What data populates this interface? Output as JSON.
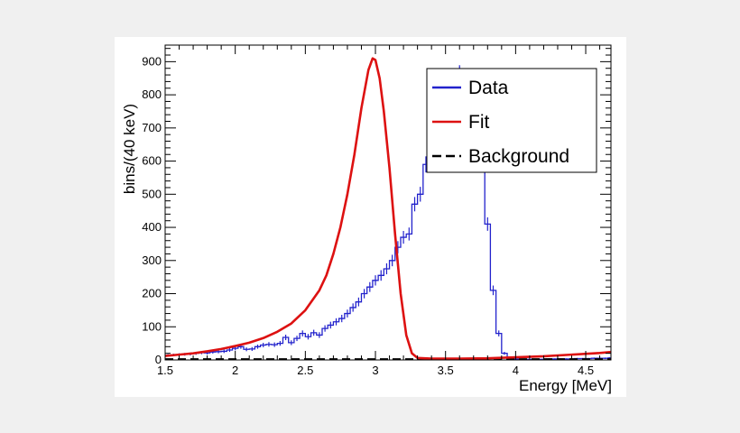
{
  "chart_data": {
    "type": "line",
    "xlabel": "Energy [MeV]",
    "ylabel": "bins/(40 keV)",
    "xlim": [
      1.5,
      4.68
    ],
    "ylim": [
      0,
      950
    ],
    "x_ticks": [
      1.5,
      2,
      2.5,
      3,
      3.5,
      4,
      4.5
    ],
    "x_tick_labels": [
      "1.5",
      "2",
      "2.5",
      "3",
      "3.5",
      "4",
      "4.5"
    ],
    "y_ticks": [
      0,
      100,
      200,
      300,
      400,
      500,
      600,
      700,
      800,
      900
    ],
    "y_tick_labels": [
      "0",
      "100",
      "200",
      "300",
      "400",
      "500",
      "600",
      "700",
      "800",
      "900"
    ],
    "grid": false,
    "legend_position": "top-right",
    "legend": [
      {
        "label": "Data",
        "color": "#2222cc",
        "style": "solid"
      },
      {
        "label": "Fit",
        "color": "#dd1111",
        "style": "solid"
      },
      {
        "label": "Background",
        "color": "#000000",
        "style": "dashed"
      }
    ],
    "series": [
      {
        "name": "Data",
        "kind": "histogram",
        "color": "#2222cc",
        "bin_width": 0.04,
        "x_start": 1.5,
        "values": [
          14,
          15,
          16,
          17,
          18,
          20,
          22,
          21,
          24,
          25,
          26,
          30,
          35,
          40,
          32,
          33,
          40,
          45,
          47,
          46,
          50,
          68,
          52,
          65,
          80,
          70,
          82,
          75,
          95,
          105,
          115,
          125,
          140,
          158,
          175,
          200,
          220,
          240,
          255,
          275,
          300,
          340,
          370,
          380,
          470,
          500,
          590,
          640,
          720,
          760,
          800,
          830,
          860,
          830,
          800,
          740,
          600,
          410,
          210,
          80,
          20,
          5,
          3,
          2,
          2,
          2,
          2,
          2,
          3,
          3,
          3,
          3,
          3,
          4,
          4,
          4,
          5,
          5,
          5,
          6,
          6,
          6,
          7,
          7,
          7,
          8,
          8,
          8,
          9,
          10,
          10,
          11,
          12,
          12,
          13,
          14,
          15,
          16,
          17,
          18,
          20,
          22,
          24,
          26,
          28,
          30,
          33,
          35,
          40,
          45
        ]
      },
      {
        "name": "Fit",
        "kind": "curve",
        "color": "#dd1111",
        "x": [
          1.5,
          1.6,
          1.7,
          1.8,
          1.9,
          2.0,
          2.1,
          2.2,
          2.3,
          2.4,
          2.5,
          2.6,
          2.65,
          2.7,
          2.75,
          2.8,
          2.85,
          2.9,
          2.95,
          2.98,
          3.0,
          3.03,
          3.06,
          3.1,
          3.14,
          3.18,
          3.22,
          3.26,
          3.3,
          3.4,
          3.5,
          3.6,
          3.8,
          4.0,
          4.2,
          4.4,
          4.6,
          4.68
        ],
        "y": [
          12,
          16,
          20,
          26,
          33,
          42,
          52,
          66,
          85,
          110,
          150,
          210,
          255,
          320,
          400,
          500,
          620,
          760,
          875,
          910,
          905,
          850,
          750,
          580,
          380,
          200,
          75,
          20,
          6,
          4,
          4,
          4,
          5,
          8,
          11,
          16,
          21,
          24
        ]
      },
      {
        "name": "Background",
        "kind": "curve",
        "color": "#000000",
        "x": [
          1.5,
          4.68
        ],
        "y": [
          2,
          2
        ]
      }
    ]
  }
}
